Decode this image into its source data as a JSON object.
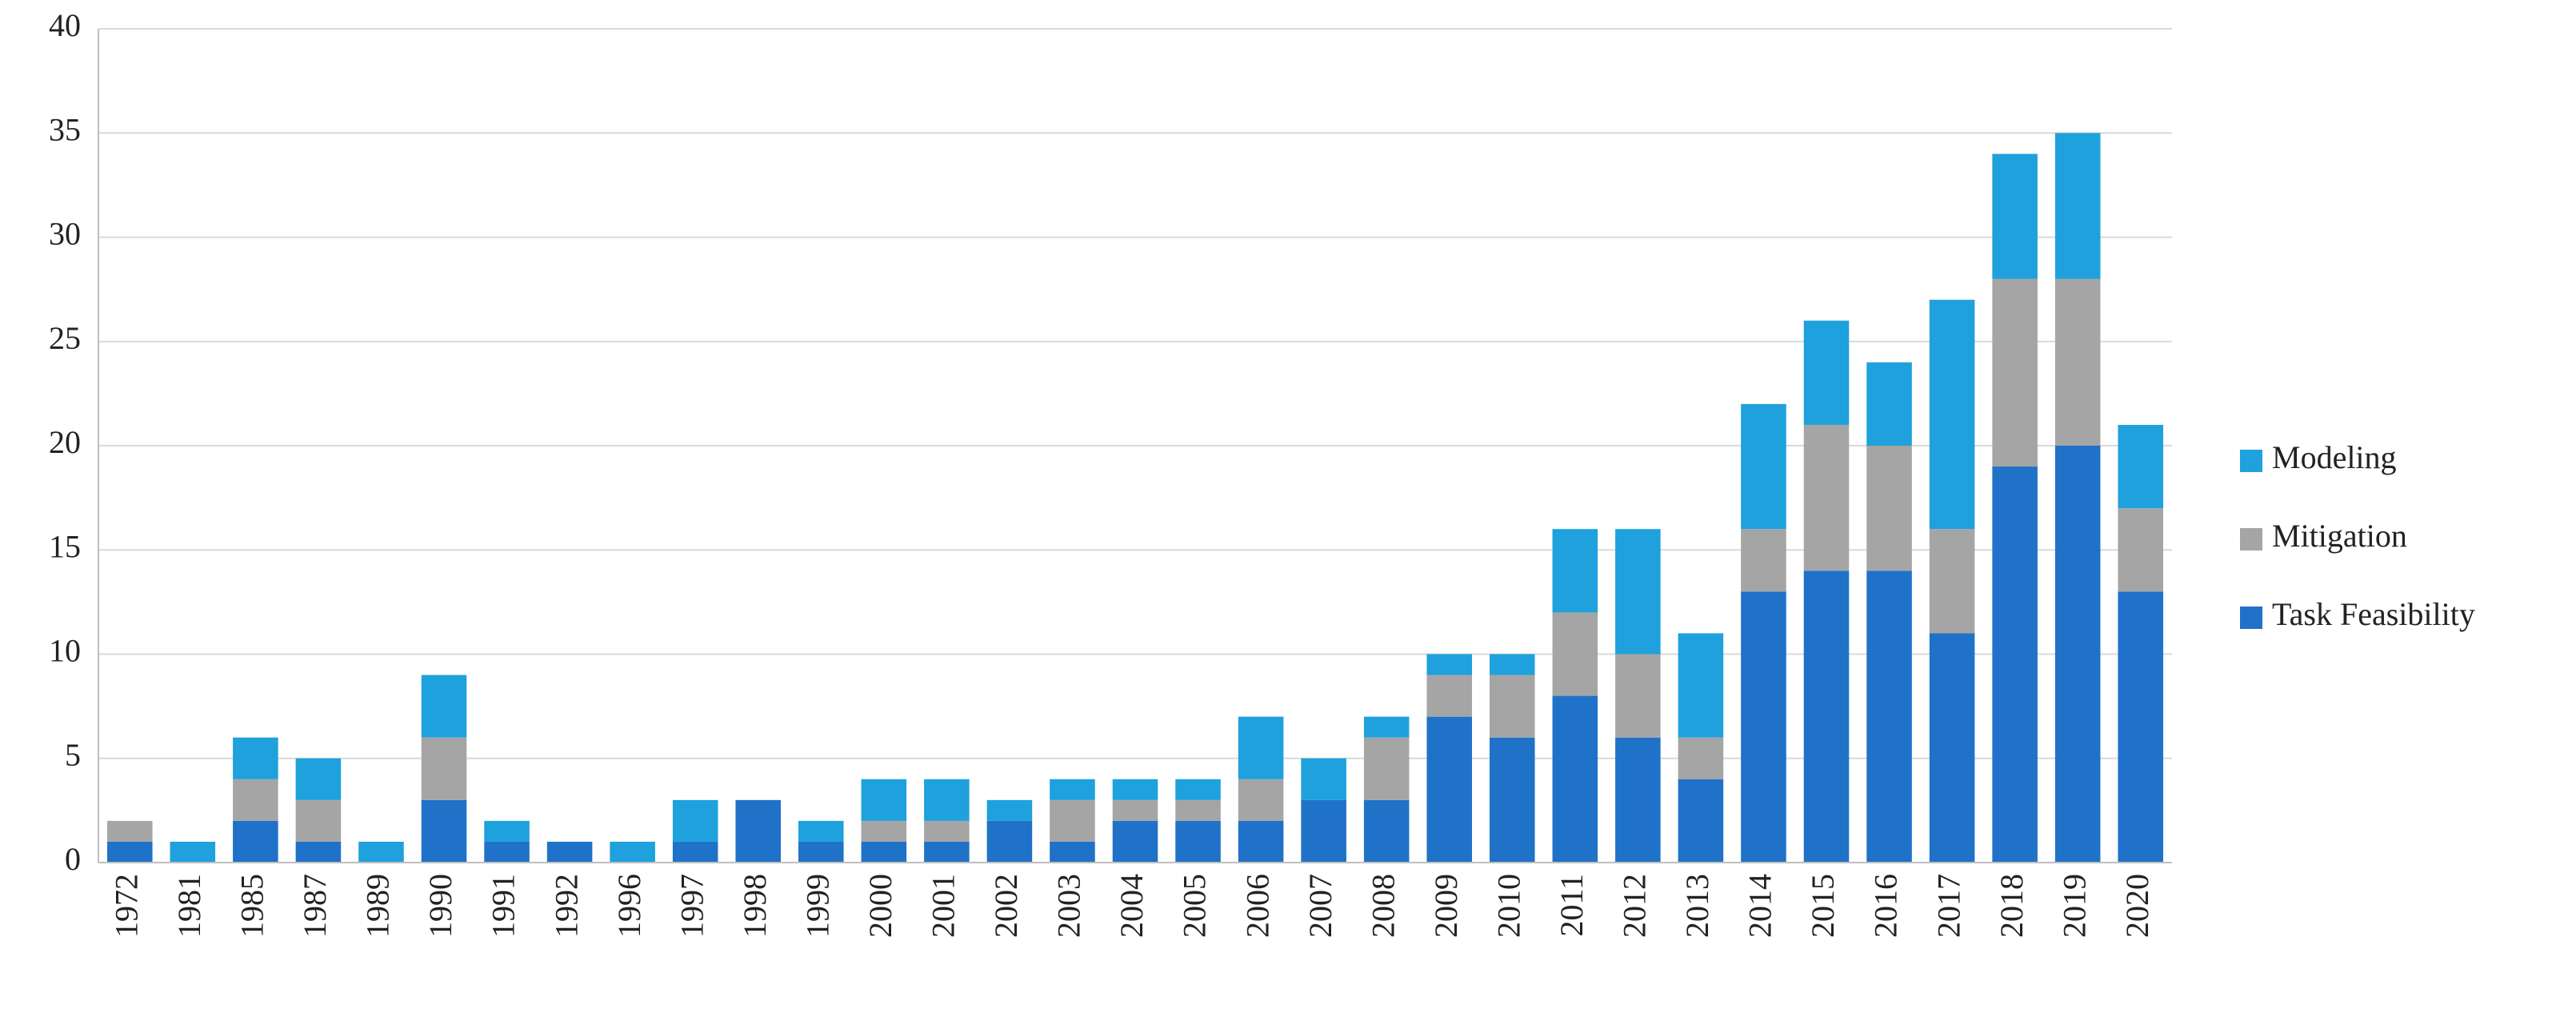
{
  "chart_data": {
    "type": "stacked-bar",
    "categories": [
      "1972",
      "1981",
      "1985",
      "1987",
      "1989",
      "1990",
      "1991",
      "1992",
      "1996",
      "1997",
      "1998",
      "1999",
      "2000",
      "2001",
      "2002",
      "2003",
      "2004",
      "2005",
      "2006",
      "2007",
      "2008",
      "2009",
      "2010",
      "2011",
      "2012",
      "2013",
      "2014",
      "2015",
      "2016",
      "2017",
      "2018",
      "2019",
      "2020"
    ],
    "series": [
      {
        "name": "Task Feasibility",
        "color": "#1f72c8",
        "values": [
          1,
          0,
          2,
          1,
          0,
          3,
          1,
          1,
          0,
          1,
          3,
          1,
          1,
          1,
          2,
          1,
          2,
          2,
          2,
          3,
          3,
          7,
          6,
          8,
          6,
          4,
          13,
          14,
          14,
          11,
          19,
          20,
          13
        ]
      },
      {
        "name": "Mitigation",
        "color": "#a5a5a5",
        "values": [
          1,
          0,
          2,
          2,
          0,
          3,
          0,
          0,
          0,
          0,
          0,
          0,
          1,
          1,
          0,
          2,
          1,
          1,
          2,
          0,
          3,
          2,
          3,
          4,
          4,
          2,
          3,
          7,
          6,
          5,
          9,
          8,
          4
        ]
      },
      {
        "name": "Modeling",
        "color": "#1ea1dc",
        "values": [
          0,
          1,
          2,
          2,
          1,
          3,
          1,
          0,
          1,
          2,
          0,
          1,
          2,
          2,
          1,
          1,
          1,
          1,
          3,
          2,
          1,
          1,
          1,
          4,
          6,
          5,
          6,
          5,
          4,
          11,
          6,
          7,
          4
        ]
      }
    ],
    "ylim": [
      0,
      40
    ],
    "yticks": [
      0,
      5,
      10,
      15,
      20,
      25,
      30,
      35,
      40
    ],
    "grid": true,
    "legend": "right"
  }
}
